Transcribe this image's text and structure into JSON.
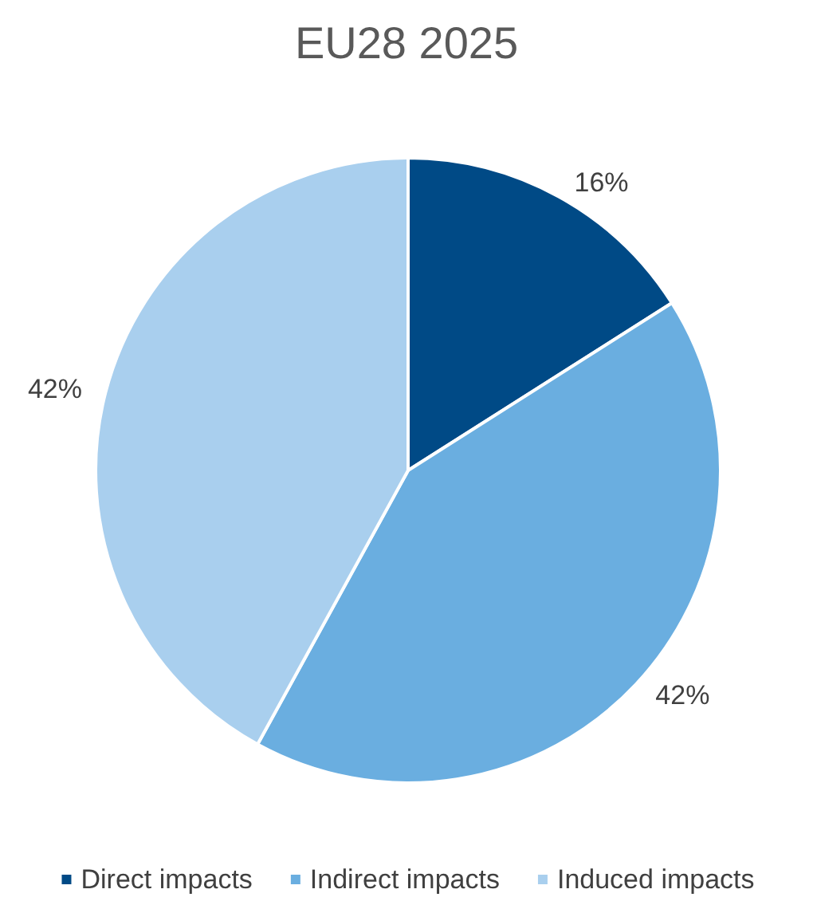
{
  "chart_data": {
    "type": "pie",
    "title": "EU28 2025",
    "categories": [
      "Direct impacts",
      "Indirect impacts",
      "Induced impacts"
    ],
    "values": [
      16,
      42,
      42
    ],
    "colors": [
      "#004a86",
      "#6aaee0",
      "#a9cfee"
    ],
    "value_labels": [
      "16%",
      "42%",
      "42%"
    ],
    "legend": "bottom"
  }
}
